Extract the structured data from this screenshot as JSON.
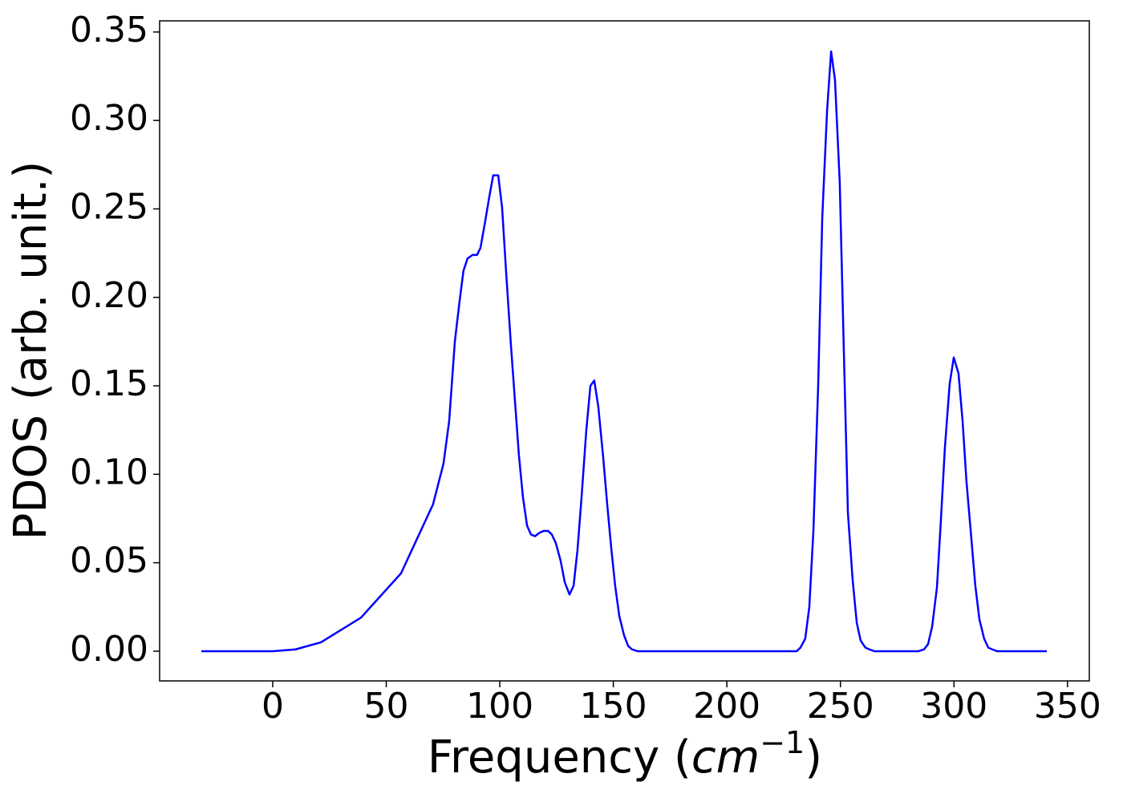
{
  "chart_data": {
    "type": "line",
    "xlabel": [
      "Frequency (",
      "cm",
      "−1",
      ")"
    ],
    "ylabel": "PDOS (arb. unit.)",
    "xlim": [
      -49.8,
      359.6
    ],
    "ylim": [
      -0.0168,
      0.3563
    ],
    "xticks": [
      0,
      50,
      100,
      150,
      200,
      250,
      300,
      350
    ],
    "yticks": [
      {
        "value": 0,
        "label": "0.00"
      },
      0.05,
      {
        "value": 0.1,
        "label": "0.10"
      },
      0.15,
      {
        "value": 0.2,
        "label": "0.20"
      },
      0.25,
      {
        "value": 0.3,
        "label": "0.30"
      },
      0.35
    ],
    "grid": false,
    "series": [
      {
        "color": "#0000ff",
        "x": [
          -31.4,
          -10,
          0,
          10,
          21.2,
          38.9,
          56.5,
          70.6,
          75.2,
          77.7,
          80.2,
          82.3,
          84,
          85.8,
          88,
          90,
          91.5,
          93.3,
          95.4,
          97.1,
          99.3,
          101,
          102.8,
          104.9,
          106.7,
          108.4,
          110.2,
          112,
          113.7,
          115.5,
          117.6,
          119.4,
          121.2,
          122.9,
          124.7,
          126.8,
          128.6,
          130.7,
          132.5,
          134.2,
          136,
          138.1,
          139.9,
          141.6,
          143.4,
          145.5,
          147.3,
          149.1,
          150.8,
          152.6,
          154.7,
          156.5,
          158.2,
          160.7,
          230.7,
          232.4,
          234.5,
          236.3,
          238.1,
          240.2,
          242,
          244.1,
          245.9,
          247.6,
          249.7,
          251.5,
          253.3,
          255.4,
          257.2,
          258.9,
          261,
          262.8,
          264.9,
          284.4,
          286.8,
          288.6,
          290.4,
          292.5,
          294.2,
          296,
          298.1,
          299.9,
          302,
          303.8,
          305.5,
          307.7,
          309.4,
          311.2,
          313.3,
          315.1,
          316.9,
          319,
          340.9
        ],
        "values": [
          0,
          0,
          0,
          0.001,
          0.005,
          0.019,
          0.044,
          0.083,
          0.106,
          0.13,
          0.175,
          0.198,
          0.215,
          0.222,
          0.224,
          0.224,
          0.228,
          0.241,
          0.257,
          0.269,
          0.269,
          0.251,
          0.214,
          0.173,
          0.141,
          0.111,
          0.087,
          0.071,
          0.066,
          0.065,
          0.067,
          0.068,
          0.068,
          0.066,
          0.061,
          0.051,
          0.039,
          0.032,
          0.037,
          0.057,
          0.087,
          0.125,
          0.15,
          0.153,
          0.138,
          0.11,
          0.083,
          0.058,
          0.037,
          0.02,
          0.009,
          0.003,
          0.001,
          0,
          0,
          0.002,
          0.007,
          0.025,
          0.068,
          0.15,
          0.245,
          0.305,
          0.339,
          0.323,
          0.265,
          0.17,
          0.078,
          0.04,
          0.016,
          0.006,
          0.002,
          0.001,
          0,
          0,
          0.001,
          0.004,
          0.014,
          0.036,
          0.073,
          0.115,
          0.151,
          0.166,
          0.157,
          0.13,
          0.096,
          0.063,
          0.037,
          0.018,
          0.007,
          0.002,
          0.001,
          0,
          0
        ]
      }
    ]
  }
}
